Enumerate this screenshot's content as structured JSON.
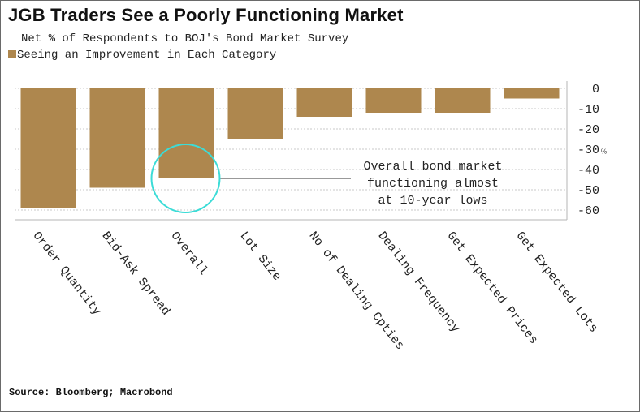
{
  "title": "JGB Traders See a Poorly Functioning Market",
  "subtitle": "Net % of Respondents to BOJ's Bond Market Survey",
  "legend": {
    "label": "Seeing an Improvement in Each Category",
    "color": "#ae874e"
  },
  "source": "Source: Bloomberg; Macrobond",
  "chart_data": {
    "type": "bar",
    "categories": [
      "Order Quantity",
      "Bid-Ask Spread",
      "Overall",
      "Lot Size",
      "No of Dealing Cpties",
      "Dealing Frequency",
      "Get Expected Prices",
      "Get Expected Lots"
    ],
    "values": [
      -59,
      -49,
      -44,
      -25,
      -14,
      -12,
      -12,
      -5
    ],
    "ylim": [
      -64,
      0
    ],
    "yticks": [
      0,
      -10,
      -20,
      -30,
      -40,
      -50,
      -60
    ],
    "ylabel": "",
    "xlabel": "",
    "unit_label": "%",
    "grid": true,
    "bar_color": "#ae874e",
    "annotation": {
      "lines": [
        "Overall bond market",
        "functioning almost",
        "at 10-year lows"
      ],
      "target": "Overall",
      "circle_color": "#3cdcd7"
    }
  }
}
